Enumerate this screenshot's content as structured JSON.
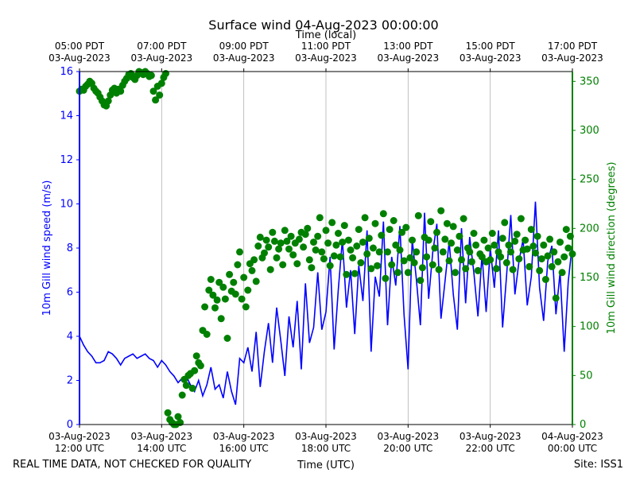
{
  "chart_data": {
    "type": "line+scatter",
    "title": "Surface wind 04-Aug-2023 00:00:00",
    "x_top_label": "Time (local)",
    "x_bottom_label": "Time (UTC)",
    "footer_left": "REAL TIME DATA, NOT CHECKED FOR QUALITY",
    "footer_right": "Site: ISS1",
    "x_range_hours_utc": [
      12,
      24
    ],
    "bottom_ticks": [
      {
        "hour": 12,
        "line1": "03-Aug-2023",
        "line2": "12:00 UTC"
      },
      {
        "hour": 14,
        "line1": "03-Aug-2023",
        "line2": "14:00 UTC"
      },
      {
        "hour": 16,
        "line1": "03-Aug-2023",
        "line2": "16:00 UTC"
      },
      {
        "hour": 18,
        "line1": "03-Aug-2023",
        "line2": "18:00 UTC"
      },
      {
        "hour": 20,
        "line1": "03-Aug-2023",
        "line2": "20:00 UTC"
      },
      {
        "hour": 22,
        "line1": "03-Aug-2023",
        "line2": "22:00 UTC"
      },
      {
        "hour": 24,
        "line1": "04-Aug-2023",
        "line2": "00:00 UTC"
      }
    ],
    "top_ticks": [
      {
        "hour": 12,
        "line1": "05:00 PDT",
        "line2": "03-Aug-2023"
      },
      {
        "hour": 14,
        "line1": "07:00 PDT",
        "line2": "03-Aug-2023"
      },
      {
        "hour": 16,
        "line1": "09:00 PDT",
        "line2": "03-Aug-2023"
      },
      {
        "hour": 18,
        "line1": "11:00 PDT",
        "line2": "03-Aug-2023"
      },
      {
        "hour": 20,
        "line1": "13:00 PDT",
        "line2": "03-Aug-2023"
      },
      {
        "hour": 22,
        "line1": "15:00 PDT",
        "line2": "03-Aug-2023"
      },
      {
        "hour": 24,
        "line1": "17:00 PDT",
        "line2": "03-Aug-2023"
      }
    ],
    "left_axis": {
      "label": "10m Gill wind speed (m/s)",
      "range": [
        0,
        16
      ],
      "ticks": [
        0,
        2,
        4,
        6,
        8,
        10,
        12,
        14,
        16
      ],
      "color": "#0000ff"
    },
    "right_axis": {
      "label": "10m Gill wind direction (degrees)",
      "range": [
        0,
        360
      ],
      "ticks": [
        0,
        50,
        100,
        150,
        200,
        250,
        300,
        350
      ],
      "color": "#008000"
    },
    "series": [
      {
        "name": "wind speed",
        "kind": "line",
        "axis": "left",
        "color": "#0000ff",
        "x_hours": [
          12.0,
          12.1,
          12.2,
          12.3,
          12.4,
          12.5,
          12.6,
          12.7,
          12.8,
          12.9,
          13.0,
          13.1,
          13.2,
          13.3,
          13.4,
          13.5,
          13.6,
          13.7,
          13.8,
          13.9,
          14.0,
          14.1,
          14.2,
          14.3,
          14.4,
          14.5,
          14.6,
          14.7,
          14.8,
          14.9,
          15.0,
          15.1,
          15.2,
          15.3,
          15.4,
          15.5,
          15.6,
          15.7,
          15.8,
          15.9,
          16.0,
          16.1,
          16.2,
          16.3,
          16.4,
          16.5,
          16.6,
          16.7,
          16.8,
          16.9,
          17.0,
          17.1,
          17.2,
          17.3,
          17.4,
          17.5,
          17.6,
          17.7,
          17.8,
          17.9,
          18.0,
          18.1,
          18.2,
          18.3,
          18.4,
          18.5,
          18.6,
          18.7,
          18.8,
          18.9,
          19.0,
          19.1,
          19.2,
          19.3,
          19.4,
          19.5,
          19.6,
          19.7,
          19.8,
          19.9,
          20.0,
          20.1,
          20.2,
          20.3,
          20.4,
          20.5,
          20.6,
          20.7,
          20.8,
          20.9,
          21.0,
          21.1,
          21.2,
          21.3,
          21.4,
          21.5,
          21.6,
          21.7,
          21.8,
          21.9,
          22.0,
          22.1,
          22.2,
          22.3,
          22.4,
          22.5,
          22.6,
          22.7,
          22.8,
          22.9,
          23.0,
          23.1,
          23.2,
          23.3,
          23.4,
          23.5,
          23.6,
          23.7,
          23.8,
          23.9,
          24.0
        ],
        "values": [
          4.0,
          3.6,
          3.3,
          3.1,
          2.8,
          2.8,
          2.9,
          3.3,
          3.2,
          3.0,
          2.7,
          3.0,
          3.1,
          3.2,
          3.0,
          3.1,
          3.2,
          3.0,
          2.9,
          2.6,
          2.9,
          2.7,
          2.4,
          2.2,
          1.9,
          2.1,
          2.2,
          1.8,
          1.5,
          2.0,
          1.3,
          1.8,
          2.6,
          1.6,
          1.8,
          1.2,
          2.4,
          1.5,
          0.9,
          3.0,
          2.8,
          3.5,
          2.4,
          4.2,
          1.7,
          3.3,
          4.6,
          2.8,
          5.3,
          3.8,
          2.2,
          4.9,
          3.5,
          5.6,
          2.5,
          6.4,
          3.7,
          4.4,
          6.9,
          4.3,
          5.1,
          7.6,
          3.4,
          6.1,
          8.4,
          5.3,
          7.0,
          4.1,
          7.2,
          5.6,
          8.8,
          3.3,
          6.7,
          5.8,
          9.2,
          4.5,
          7.6,
          6.3,
          9.0,
          5.0,
          2.5,
          8.4,
          6.6,
          4.5,
          9.6,
          5.7,
          7.8,
          9.1,
          4.8,
          6.5,
          8.3,
          5.9,
          4.3,
          8.9,
          5.5,
          8.5,
          6.9,
          4.9,
          7.7,
          5.1,
          8.0,
          6.2,
          8.8,
          4.4,
          6.8,
          9.5,
          5.9,
          7.4,
          8.4,
          5.4,
          6.7,
          10.1,
          6.2,
          4.7,
          7.4,
          8.1,
          5.0,
          6.9,
          3.3,
          6.5,
          8.2
        ]
      },
      {
        "name": "wind direction",
        "kind": "scatter",
        "axis": "right",
        "color": "#008000",
        "x_hours": [
          12.0,
          12.05,
          12.1,
          12.15,
          12.2,
          12.25,
          12.3,
          12.35,
          12.4,
          12.45,
          12.5,
          12.55,
          12.6,
          12.65,
          12.7,
          12.75,
          12.8,
          12.85,
          12.9,
          12.95,
          13.0,
          13.05,
          13.1,
          13.15,
          13.2,
          13.25,
          13.3,
          13.35,
          13.4,
          13.45,
          13.5,
          13.55,
          13.6,
          13.65,
          13.7,
          13.75,
          13.8,
          13.85,
          13.9,
          13.95,
          14.0,
          14.05,
          14.1,
          14.15,
          14.2,
          14.25,
          14.3,
          14.35,
          14.4,
          14.45,
          14.5,
          14.55,
          14.6,
          14.65,
          14.7,
          14.75,
          14.8,
          14.85,
          14.9,
          14.95,
          15.0,
          15.05,
          15.1,
          15.15,
          15.2,
          15.25,
          15.3,
          15.35,
          15.4,
          15.45,
          15.5,
          15.55,
          15.6,
          15.65,
          15.7,
          15.75,
          15.8,
          15.85,
          15.9,
          15.95,
          16.0,
          16.05,
          16.1,
          16.15,
          16.2,
          16.25,
          16.3,
          16.35,
          16.4,
          16.45,
          16.5,
          16.55,
          16.6,
          16.65,
          16.7,
          16.75,
          16.8,
          16.85,
          16.9,
          16.95,
          17.0,
          17.05,
          17.1,
          17.15,
          17.2,
          17.25,
          17.3,
          17.35,
          17.4,
          17.45,
          17.5,
          17.55,
          17.6,
          17.65,
          17.7,
          17.75,
          17.8,
          17.85,
          17.9,
          17.95,
          18.0,
          18.05,
          18.1,
          18.15,
          18.2,
          18.25,
          18.3,
          18.35,
          18.4,
          18.45,
          18.5,
          18.55,
          18.6,
          18.65,
          18.7,
          18.75,
          18.8,
          18.85,
          18.9,
          18.95,
          19.0,
          19.05,
          19.1,
          19.15,
          19.2,
          19.25,
          19.3,
          19.35,
          19.4,
          19.45,
          19.5,
          19.55,
          19.6,
          19.65,
          19.7,
          19.75,
          19.8,
          19.85,
          19.9,
          19.95,
          20.0,
          20.05,
          20.1,
          20.15,
          20.2,
          20.25,
          20.3,
          20.35,
          20.4,
          20.45,
          20.5,
          20.55,
          20.6,
          20.65,
          20.7,
          20.75,
          20.8,
          20.85,
          20.9,
          20.95,
          21.0,
          21.05,
          21.1,
          21.15,
          21.2,
          21.25,
          21.3,
          21.35,
          21.4,
          21.45,
          21.5,
          21.55,
          21.6,
          21.65,
          21.7,
          21.75,
          21.8,
          21.85,
          21.9,
          21.95,
          22.0,
          22.05,
          22.1,
          22.15,
          22.2,
          22.25,
          22.3,
          22.35,
          22.4,
          22.45,
          22.5,
          22.55,
          22.6,
          22.65,
          22.7,
          22.75,
          22.8,
          22.85,
          22.9,
          22.95,
          23.0,
          23.05,
          23.1,
          23.15,
          23.2,
          23.25,
          23.3,
          23.35,
          23.4,
          23.45,
          23.5,
          23.55,
          23.6,
          23.65,
          23.7,
          23.75,
          23.8,
          23.85,
          23.9,
          23.95,
          24.0
        ],
        "values": [
          340,
          342,
          341,
          345,
          347,
          350,
          348,
          343,
          340,
          338,
          334,
          330,
          326,
          325,
          330,
          336,
          341,
          343,
          338,
          342,
          340,
          346,
          350,
          353,
          357,
          358,
          354,
          352,
          356,
          360,
          359,
          357,
          360,
          358,
          355,
          356,
          340,
          331,
          345,
          336,
          348,
          354,
          358,
          12,
          5,
          2,
          0,
          0,
          8,
          2,
          30,
          46,
          40,
          50,
          52,
          37,
          55,
          70,
          63,
          60,
          96,
          120,
          92,
          137,
          148,
          132,
          119,
          127,
          145,
          108,
          140,
          128,
          88,
          153,
          136,
          145,
          133,
          163,
          176,
          128,
          150,
          120,
          137,
          164,
          157,
          168,
          146,
          182,
          191,
          170,
          175,
          188,
          181,
          158,
          196,
          187,
          170,
          179,
          185,
          163,
          198,
          187,
          179,
          192,
          173,
          185,
          164,
          189,
          196,
          181,
          194,
          200,
          168,
          160,
          186,
          178,
          192,
          211,
          176,
          169,
          198,
          185,
          162,
          206,
          172,
          183,
          195,
          171,
          186,
          203,
          153,
          188,
          178,
          170,
          154,
          182,
          199,
          165,
          186,
          211,
          174,
          190,
          159,
          180,
          205,
          162,
          176,
          193,
          215,
          149,
          176,
          199,
          163,
          208,
          183,
          155,
          178,
          196,
          167,
          201,
          155,
          170,
          188,
          165,
          176,
          213,
          147,
          160,
          191,
          171,
          188,
          207,
          163,
          180,
          196,
          158,
          218,
          176,
          189,
          205,
          167,
          185,
          202,
          155,
          178,
          192,
          168,
          210,
          159,
          180,
          176,
          166,
          195,
          183,
          157,
          174,
          171,
          188,
          166,
          180,
          168,
          195,
          183,
          159,
          176,
          171,
          190,
          206,
          165,
          183,
          176,
          158,
          187,
          194,
          169,
          210,
          178,
          188,
          179,
          161,
          199,
          182,
          175,
          192,
          157,
          169,
          183,
          148,
          172,
          189,
          161,
          176,
          129,
          166,
          186,
          155,
          171,
          199,
          180,
          192,
          174
        ]
      }
    ]
  }
}
